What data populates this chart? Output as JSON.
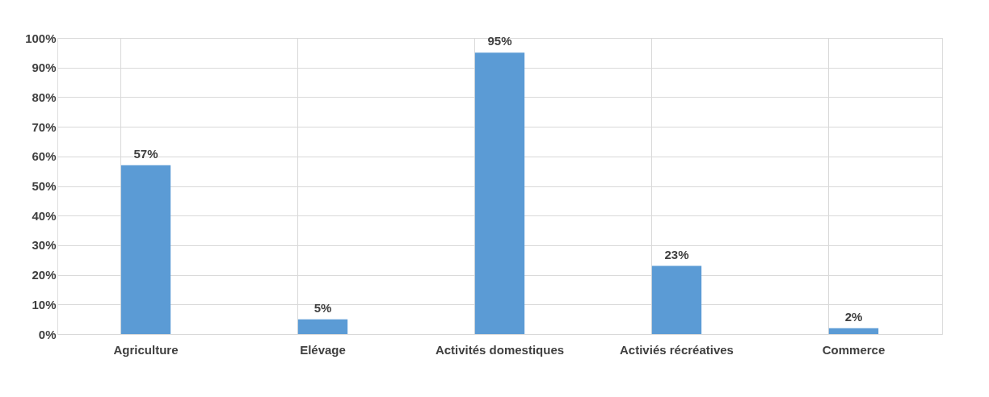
{
  "chart_data": {
    "type": "bar",
    "categories": [
      "Agriculture",
      "Elévage",
      "Activités domestiques",
      "Activiés récréatives",
      "Commerce"
    ],
    "values": [
      57,
      5,
      95,
      23,
      2
    ],
    "value_labels": [
      "57%",
      "5%",
      "95%",
      "23%",
      "2%"
    ],
    "color": "#5b9bd5",
    "ylim": [
      0,
      100
    ],
    "yticks": [
      {
        "value": 0,
        "label": "0%"
      },
      {
        "value": 10,
        "label": "10%"
      },
      {
        "value": 20,
        "label": "20%"
      },
      {
        "value": 30,
        "label": "30%"
      },
      {
        "value": 40,
        "label": "40%"
      },
      {
        "value": 50,
        "label": "50%"
      },
      {
        "value": 60,
        "label": "60%"
      },
      {
        "value": 70,
        "label": "70%"
      },
      {
        "value": 80,
        "label": "80%"
      },
      {
        "value": 90,
        "label": "90%"
      },
      {
        "value": 100,
        "label": "100%"
      }
    ],
    "grid": true
  }
}
